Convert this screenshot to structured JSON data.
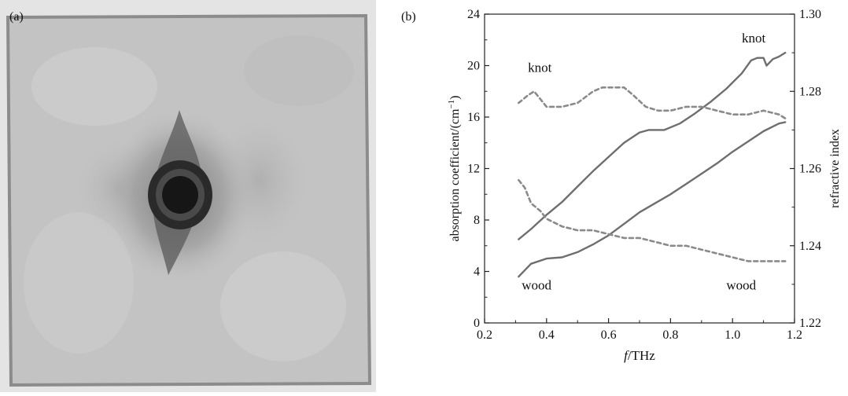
{
  "panels": {
    "a_label": "(a)",
    "b_label": "(b)"
  },
  "colors": {
    "solid_line": "#6e6e6e",
    "dashed_line": "#8a8a8a",
    "axis": "#222222",
    "photo_background": "#e6e6e6",
    "board": "#c4c4c4",
    "knot_dark": "#1c1c1c"
  },
  "chart_data": {
    "type": "line",
    "xlabel_italic": "f",
    "xlabel_rest": "/THz",
    "ylabel": "absorption coefficient/(cm",
    "ylabel_sup": "−1",
    "ylabel_end": ")",
    "y2label": "refractive index",
    "xlim": [
      0.2,
      1.2
    ],
    "ylim": [
      0,
      24
    ],
    "y2lim": [
      1.22,
      1.3
    ],
    "xticks": [
      "0.2",
      "0.4",
      "0.6",
      "0.8",
      "1.0",
      "1.2"
    ],
    "yticks": [
      "0",
      "4",
      "8",
      "12",
      "16",
      "20",
      "24"
    ],
    "y2ticks": [
      "1.22",
      "1.24",
      "1.26",
      "1.28",
      "1.30"
    ],
    "series": [
      {
        "axis": "left",
        "style": "solid",
        "label": "knot",
        "x": [
          0.31,
          0.35,
          0.4,
          0.45,
          0.5,
          0.55,
          0.6,
          0.65,
          0.7,
          0.73,
          0.78,
          0.83,
          0.88,
          0.93,
          0.98,
          1.03,
          1.06,
          1.08,
          1.1,
          1.11,
          1.13,
          1.15,
          1.17
        ],
        "y": [
          6.5,
          7.3,
          8.4,
          9.4,
          10.6,
          11.8,
          12.9,
          14.0,
          14.8,
          15.0,
          15.0,
          15.5,
          16.3,
          17.2,
          18.2,
          19.4,
          20.4,
          20.6,
          20.6,
          20.0,
          20.5,
          20.7,
          21.0
        ]
      },
      {
        "axis": "left",
        "style": "solid",
        "label": "wood",
        "x": [
          0.31,
          0.35,
          0.4,
          0.45,
          0.5,
          0.55,
          0.6,
          0.65,
          0.7,
          0.75,
          0.8,
          0.85,
          0.9,
          0.95,
          1.0,
          1.05,
          1.1,
          1.15,
          1.17
        ],
        "y": [
          3.6,
          4.6,
          5.0,
          5.1,
          5.5,
          6.1,
          6.8,
          7.7,
          8.6,
          9.3,
          10.0,
          10.8,
          11.6,
          12.4,
          13.3,
          14.1,
          14.9,
          15.5,
          15.6
        ]
      },
      {
        "axis": "right",
        "style": "dashed",
        "label": "knot",
        "x": [
          0.31,
          0.34,
          0.36,
          0.38,
          0.4,
          0.45,
          0.5,
          0.55,
          0.58,
          0.62,
          0.65,
          0.68,
          0.72,
          0.76,
          0.8,
          0.85,
          0.9,
          0.95,
          1.0,
          1.05,
          1.1,
          1.15,
          1.17
        ],
        "y": [
          1.277,
          1.279,
          1.28,
          1.278,
          1.276,
          1.276,
          1.277,
          1.28,
          1.281,
          1.281,
          1.281,
          1.279,
          1.276,
          1.275,
          1.275,
          1.276,
          1.276,
          1.275,
          1.274,
          1.274,
          1.275,
          1.274,
          1.273
        ]
      },
      {
        "axis": "right",
        "style": "dashed",
        "label": "wood",
        "x": [
          0.31,
          0.33,
          0.35,
          0.38,
          0.4,
          0.45,
          0.5,
          0.55,
          0.6,
          0.65,
          0.7,
          0.75,
          0.8,
          0.85,
          0.9,
          0.95,
          1.0,
          1.05,
          1.1,
          1.15,
          1.17
        ],
        "y": [
          1.257,
          1.255,
          1.251,
          1.249,
          1.247,
          1.245,
          1.244,
          1.244,
          1.243,
          1.242,
          1.242,
          1.241,
          1.24,
          1.24,
          1.239,
          1.238,
          1.237,
          1.236,
          1.236,
          1.236,
          1.236
        ]
      }
    ],
    "annotations": {
      "knot_solid": "knot",
      "knot_dashed": "knot",
      "wood_left": "wood",
      "wood_right": "wood"
    }
  }
}
